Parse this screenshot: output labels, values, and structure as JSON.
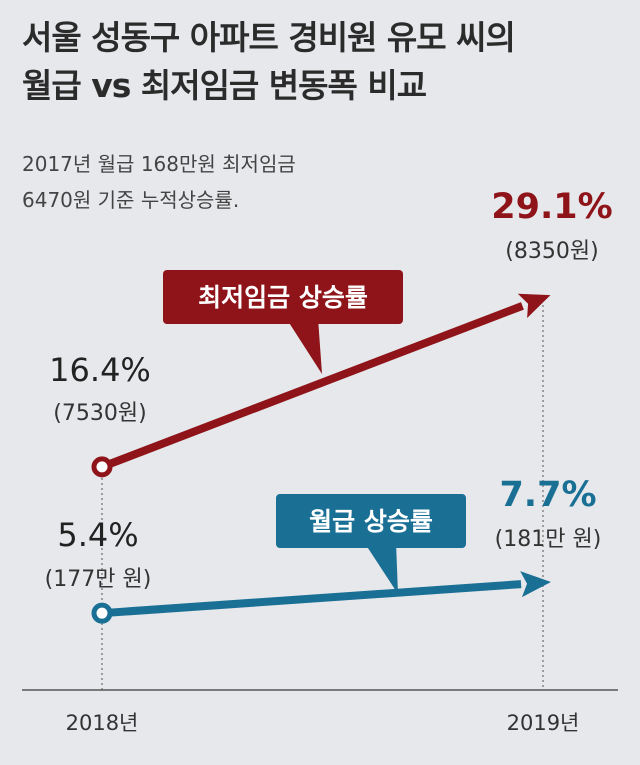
{
  "title_line1": "서울 성동구 아파트 경비원 유모 씨의",
  "title_line2": "월급 vs 최저임금 변동폭 비교",
  "subtitle_line1": "2017년 월급 168만원 최저임금",
  "subtitle_line2": "6470원 기준 누적상승률.",
  "colors": {
    "min_wage": "#8f1419",
    "salary": "#1a6f95",
    "background": "#e6e8eb",
    "text": "#2b2b2b"
  },
  "chart_data": {
    "type": "line",
    "categories": [
      "2018년",
      "2019년"
    ],
    "series": [
      {
        "name": "최저임금 상승률",
        "values": [
          16.4,
          29.1
        ],
        "value_labels": [
          "16.4%",
          "29.1%"
        ],
        "sub_labels": [
          "(7530원)",
          "(8350원)"
        ]
      },
      {
        "name": "월급 상승률",
        "values": [
          5.4,
          7.7
        ],
        "value_labels": [
          "5.4%",
          "7.7%"
        ],
        "sub_labels": [
          "(177만 원)",
          "(181만 원)"
        ]
      }
    ],
    "ylim": [
      0,
      35
    ]
  }
}
